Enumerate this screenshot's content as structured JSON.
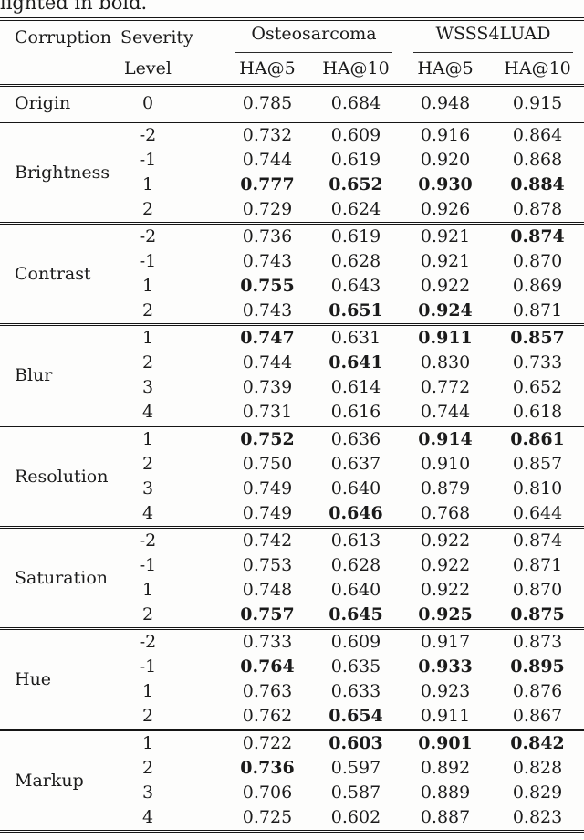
{
  "page": {
    "caption_fragment": "lighted in bold."
  },
  "table": {
    "header": {
      "corruption": "Corruption",
      "severity_line1": "Severity",
      "severity_line2": "Level",
      "group1": "Osteosarcoma",
      "group2": "WSSS4LUAD",
      "subcols": [
        "HA@5",
        "HA@10",
        "HA@5",
        "HA@10"
      ]
    },
    "sections": [
      {
        "corruption": "Origin",
        "rows": [
          {
            "level": "0",
            "values": [
              "0.785",
              "0.684",
              "0.948",
              "0.915"
            ],
            "bold": [
              false,
              false,
              false,
              false
            ]
          }
        ]
      },
      {
        "corruption": "Brightness",
        "rows": [
          {
            "level": "-2",
            "values": [
              "0.732",
              "0.609",
              "0.916",
              "0.864"
            ],
            "bold": [
              false,
              false,
              false,
              false
            ]
          },
          {
            "level": "-1",
            "values": [
              "0.744",
              "0.619",
              "0.920",
              "0.868"
            ],
            "bold": [
              false,
              false,
              false,
              false
            ]
          },
          {
            "level": "1",
            "values": [
              "0.777",
              "0.652",
              "0.930",
              "0.884"
            ],
            "bold": [
              true,
              true,
              true,
              true
            ]
          },
          {
            "level": "2",
            "values": [
              "0.729",
              "0.624",
              "0.926",
              "0.878"
            ],
            "bold": [
              false,
              false,
              false,
              false
            ]
          }
        ]
      },
      {
        "corruption": "Contrast",
        "rows": [
          {
            "level": "-2",
            "values": [
              "0.736",
              "0.619",
              "0.921",
              "0.874"
            ],
            "bold": [
              false,
              false,
              false,
              true
            ]
          },
          {
            "level": "-1",
            "values": [
              "0.743",
              "0.628",
              "0.921",
              "0.870"
            ],
            "bold": [
              false,
              false,
              false,
              false
            ]
          },
          {
            "level": "1",
            "values": [
              "0.755",
              "0.643",
              "0.922",
              "0.869"
            ],
            "bold": [
              true,
              false,
              false,
              false
            ]
          },
          {
            "level": "2",
            "values": [
              "0.743",
              "0.651",
              "0.924",
              "0.871"
            ],
            "bold": [
              false,
              true,
              true,
              false
            ]
          }
        ]
      },
      {
        "corruption": "Blur",
        "rows": [
          {
            "level": "1",
            "values": [
              "0.747",
              "0.631",
              "0.911",
              "0.857"
            ],
            "bold": [
              true,
              false,
              true,
              true
            ]
          },
          {
            "level": "2",
            "values": [
              "0.744",
              "0.641",
              "0.830",
              "0.733"
            ],
            "bold": [
              false,
              true,
              false,
              false
            ]
          },
          {
            "level": "3",
            "values": [
              "0.739",
              "0.614",
              "0.772",
              "0.652"
            ],
            "bold": [
              false,
              false,
              false,
              false
            ]
          },
          {
            "level": "4",
            "values": [
              "0.731",
              "0.616",
              "0.744",
              "0.618"
            ],
            "bold": [
              false,
              false,
              false,
              false
            ]
          }
        ]
      },
      {
        "corruption": "Resolution",
        "rows": [
          {
            "level": "1",
            "values": [
              "0.752",
              "0.636",
              "0.914",
              "0.861"
            ],
            "bold": [
              true,
              false,
              true,
              true
            ]
          },
          {
            "level": "2",
            "values": [
              "0.750",
              "0.637",
              "0.910",
              "0.857"
            ],
            "bold": [
              false,
              false,
              false,
              false
            ]
          },
          {
            "level": "3",
            "values": [
              "0.749",
              "0.640",
              "0.879",
              "0.810"
            ],
            "bold": [
              false,
              false,
              false,
              false
            ]
          },
          {
            "level": "4",
            "values": [
              "0.749",
              "0.646",
              "0.768",
              "0.644"
            ],
            "bold": [
              false,
              true,
              false,
              false
            ]
          }
        ]
      },
      {
        "corruption": "Saturation",
        "rows": [
          {
            "level": "-2",
            "values": [
              "0.742",
              "0.613",
              "0.922",
              "0.874"
            ],
            "bold": [
              false,
              false,
              false,
              false
            ]
          },
          {
            "level": "-1",
            "values": [
              "0.753",
              "0.628",
              "0.922",
              "0.871"
            ],
            "bold": [
              false,
              false,
              false,
              false
            ]
          },
          {
            "level": "1",
            "values": [
              "0.748",
              "0.640",
              "0.922",
              "0.870"
            ],
            "bold": [
              false,
              false,
              false,
              false
            ]
          },
          {
            "level": "2",
            "values": [
              "0.757",
              "0.645",
              "0.925",
              "0.875"
            ],
            "bold": [
              true,
              true,
              true,
              true
            ]
          }
        ]
      },
      {
        "corruption": "Hue",
        "rows": [
          {
            "level": "-2",
            "values": [
              "0.733",
              "0.609",
              "0.917",
              "0.873"
            ],
            "bold": [
              false,
              false,
              false,
              false
            ]
          },
          {
            "level": "-1",
            "values": [
              "0.764",
              "0.635",
              "0.933",
              "0.895"
            ],
            "bold": [
              true,
              false,
              true,
              true
            ]
          },
          {
            "level": "1",
            "values": [
              "0.763",
              "0.633",
              "0.923",
              "0.876"
            ],
            "bold": [
              false,
              false,
              false,
              false
            ]
          },
          {
            "level": "2",
            "values": [
              "0.762",
              "0.654",
              "0.911",
              "0.867"
            ],
            "bold": [
              false,
              true,
              false,
              false
            ]
          }
        ]
      },
      {
        "corruption": "Markup",
        "rows": [
          {
            "level": "1",
            "values": [
              "0.722",
              "0.603",
              "0.901",
              "0.842"
            ],
            "bold": [
              false,
              true,
              true,
              true
            ]
          },
          {
            "level": "2",
            "values": [
              "0.736",
              "0.597",
              "0.892",
              "0.828"
            ],
            "bold": [
              true,
              false,
              false,
              false
            ]
          },
          {
            "level": "3",
            "values": [
              "0.706",
              "0.587",
              "0.889",
              "0.829"
            ],
            "bold": [
              false,
              false,
              false,
              false
            ]
          },
          {
            "level": "4",
            "values": [
              "0.725",
              "0.602",
              "0.887",
              "0.823"
            ],
            "bold": [
              false,
              false,
              false,
              false
            ]
          }
        ]
      }
    ]
  }
}
